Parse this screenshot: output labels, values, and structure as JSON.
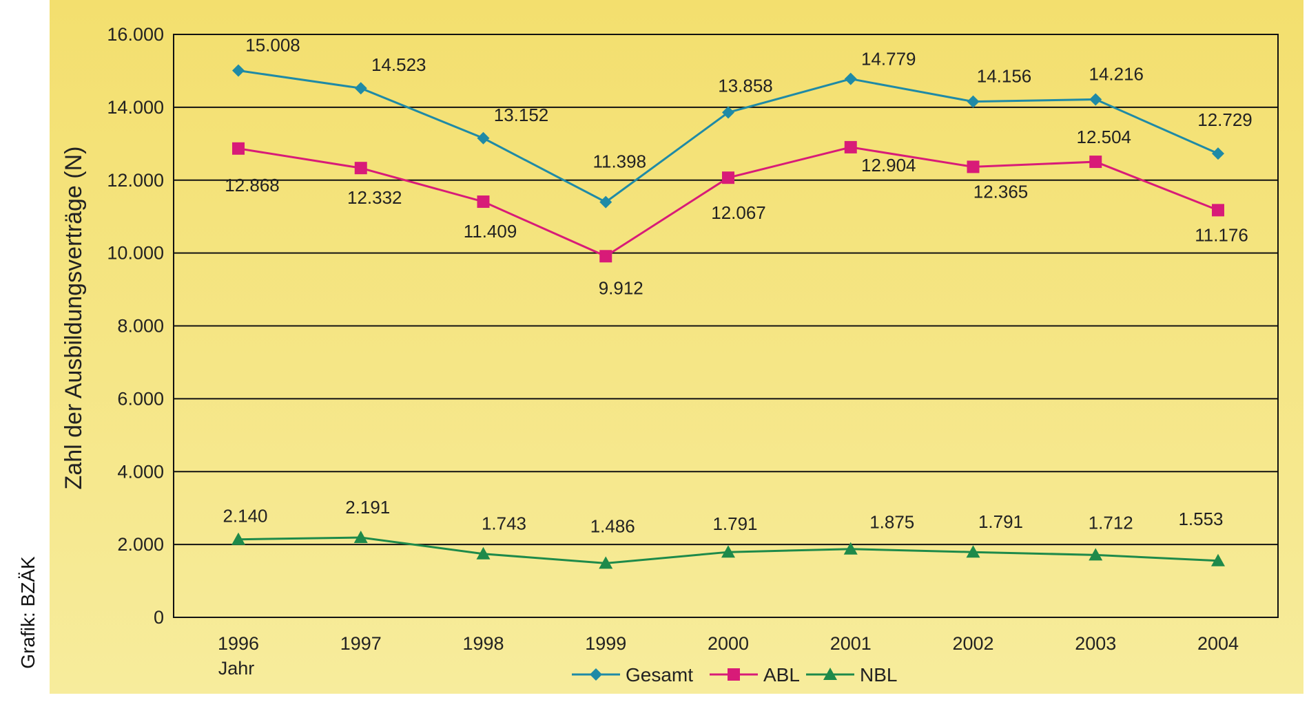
{
  "credit": "Grafik: BZÄK",
  "chart_data": {
    "type": "line",
    "title": "",
    "xlabel": "Jahr",
    "ylabel": "Zahl der Ausbildungsverträge (N)",
    "ylim": [
      0,
      16000
    ],
    "yticks": [
      0,
      2000,
      4000,
      6000,
      8000,
      10000,
      12000,
      14000,
      16000
    ],
    "ytick_labels": [
      "0",
      "2.000",
      "4.000",
      "6.000",
      "8.000",
      "10.000",
      "12.000",
      "14.000",
      "16.000"
    ],
    "grid": true,
    "legend": "bottom",
    "categories": [
      "1996",
      "1997",
      "1998",
      "1999",
      "2000",
      "2001",
      "2002",
      "2003",
      "2004"
    ],
    "series": [
      {
        "name": "Gesamt",
        "color": "#1f8aa6",
        "marker": "diamond",
        "values": [
          15008,
          14523,
          13152,
          11398,
          13858,
          14779,
          14156,
          14216,
          12729
        ],
        "labels": [
          "15.008",
          "14.523",
          "13.152",
          "11.398",
          "13.858",
          "14.779",
          "14.156",
          "14.216",
          "12.729"
        ]
      },
      {
        "name": "ABL",
        "color": "#d81b78",
        "marker": "square",
        "values": [
          12868,
          12332,
          11409,
          9912,
          12067,
          12904,
          12365,
          12504,
          11176
        ],
        "labels": [
          "12.868",
          "12.332",
          "11.409",
          "9.912",
          "12.067",
          "12.904",
          "12.365",
          "12.504",
          "11.176"
        ]
      },
      {
        "name": "NBL",
        "color": "#1e8a4a",
        "marker": "triangle",
        "values": [
          2140,
          2191,
          1743,
          1486,
          1791,
          1875,
          1791,
          1712,
          1553
        ],
        "labels": [
          "2.140",
          "2.191",
          "1.743",
          "1.486",
          "1.791",
          "1.875",
          "1.791",
          "1.712",
          "1.553"
        ]
      }
    ]
  }
}
